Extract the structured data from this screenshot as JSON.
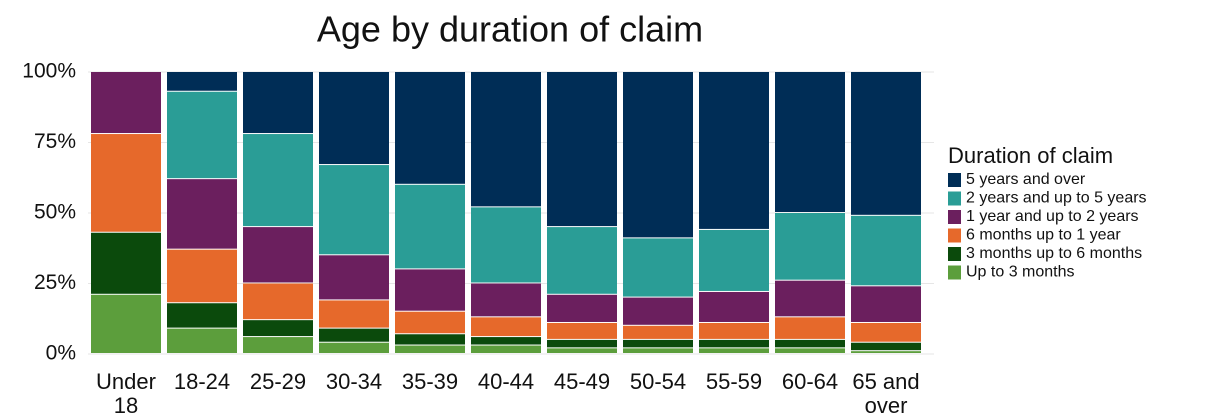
{
  "chart_data": {
    "type": "stacked_bar",
    "title": "Age by duration of claim",
    "categories": [
      "Under 18",
      "18-24",
      "25-29",
      "30-34",
      "35-39",
      "40-44",
      "45-49",
      "50-54",
      "55-59",
      "60-64",
      "65 and over"
    ],
    "legend_title": "Duration of claim",
    "series": [
      {
        "name": "Up to 3 months",
        "color": "#5c9e3c",
        "values": [
          21,
          9,
          6,
          4,
          3,
          3,
          2,
          2,
          2,
          2,
          1
        ]
      },
      {
        "name": "3 months up to 6 months",
        "color": "#0b4a0c",
        "values": [
          22,
          9,
          6,
          5,
          4,
          3,
          3,
          3,
          3,
          3,
          3
        ]
      },
      {
        "name": "6 months up to 1 year",
        "color": "#e6692b",
        "values": [
          35,
          19,
          13,
          10,
          8,
          7,
          6,
          5,
          6,
          8,
          7
        ]
      },
      {
        "name": "1 year and up to 2 years",
        "color": "#6b1f5e",
        "values": [
          22,
          25,
          20,
          16,
          15,
          12,
          10,
          10,
          11,
          13,
          13
        ]
      },
      {
        "name": "2 years and up to 5 years",
        "color": "#2a9d96",
        "values": [
          0,
          31,
          33,
          32,
          30,
          27,
          24,
          21,
          22,
          24,
          25
        ]
      },
      {
        "name": "5 years and over",
        "color": "#002d56",
        "values": [
          0,
          7,
          22,
          33,
          40,
          48,
          55,
          59,
          56,
          50,
          51
        ]
      }
    ],
    "ylim": [
      0,
      100
    ],
    "yticks": [
      {
        "value": 0,
        "label": "0%"
      },
      {
        "value": 25,
        "label": "25%"
      },
      {
        "value": 50,
        "label": "50%"
      },
      {
        "value": 75,
        "label": "75%"
      },
      {
        "value": 100,
        "label": "100%"
      }
    ],
    "grid": true,
    "legend": "right"
  }
}
